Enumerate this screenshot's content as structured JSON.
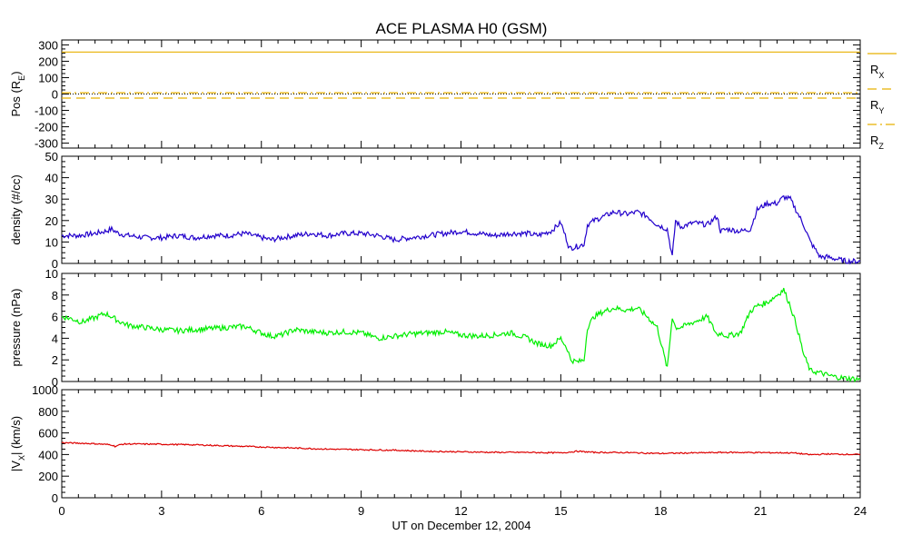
{
  "chart_data": [
    {
      "type": "line",
      "title": "ACE PLASMA H0 (GSM)",
      "ylabel": "Pos (R",
      "ylabel_sub": "E",
      "ylabel_close": ")",
      "ylim": [
        -330,
        330
      ],
      "yticks": [
        -300,
        -200,
        -100,
        0,
        100,
        200,
        300
      ],
      "xlim": [
        0,
        24
      ],
      "series": [
        {
          "name": "R",
          "sub": "X",
          "color": "#e8b000",
          "dash": "solid",
          "x": [
            0,
            24
          ],
          "values": [
            256,
            256
          ]
        },
        {
          "name": "R",
          "sub": "Y",
          "color": "#e8b000",
          "dash": "dash",
          "x": [
            0,
            24
          ],
          "values": [
            -25,
            -25
          ]
        },
        {
          "name": "R",
          "sub": "Z",
          "color": "#e8b000",
          "dash": "dashdot",
          "x": [
            0,
            24
          ],
          "values": [
            8,
            8
          ]
        }
      ],
      "zero_line": true
    },
    {
      "type": "line",
      "ylabel": "density (#/cc)",
      "ylim": [
        0,
        50
      ],
      "yticks": [
        0,
        10,
        20,
        30,
        40,
        50
      ],
      "xlim": [
        0,
        24
      ],
      "series": [
        {
          "color": "#2200cc",
          "x": [
            0,
            0.5,
            1,
            1.3,
            1.5,
            1.7,
            2,
            2.5,
            3,
            3.5,
            4,
            4.5,
            5,
            5.5,
            6,
            6.3,
            6.6,
            7,
            7.5,
            8,
            8.5,
            9,
            9.5,
            10,
            10.5,
            11,
            11.5,
            12,
            12.5,
            13,
            13.5,
            14,
            14.3,
            14.7,
            15,
            15.2,
            15.25,
            15.5,
            15.7,
            15.8,
            16,
            16.3,
            16.6,
            17,
            17.3,
            17.6,
            17.9,
            18.2,
            18.35,
            18.45,
            18.6,
            19,
            19.4,
            19.7,
            19.8,
            20,
            20.4,
            20.7,
            20.9,
            21.2,
            21.5,
            21.7,
            21.9,
            22.1,
            22.3,
            22.5,
            22.8,
            23,
            23.3,
            23.6,
            24
          ],
          "values": [
            13,
            13,
            14,
            15,
            16,
            14,
            13,
            12,
            12,
            13,
            12,
            13,
            13,
            14,
            12,
            11,
            12,
            13,
            14,
            13,
            14,
            14,
            13,
            11,
            12,
            13,
            14,
            15,
            14,
            13,
            14,
            14,
            13,
            15,
            19,
            10,
            7,
            8,
            9,
            18,
            20,
            22,
            24,
            23,
            24,
            22,
            18,
            16,
            3,
            20,
            17,
            19,
            18,
            22,
            15,
            16,
            15,
            16,
            25,
            28,
            28,
            31,
            30,
            24,
            18,
            10,
            3,
            3,
            2,
            1,
            1
          ]
        }
      ]
    },
    {
      "type": "line",
      "ylabel": "pressure (nPa)",
      "ylim": [
        0,
        10
      ],
      "yticks": [
        0,
        2,
        4,
        6,
        8,
        10
      ],
      "xlim": [
        0,
        24
      ],
      "series": [
        {
          "color": "#00ee00",
          "x": [
            0,
            0.3,
            0.6,
            1,
            1.3,
            1.5,
            1.7,
            2,
            2.5,
            3,
            3.5,
            4,
            4.5,
            5,
            5.5,
            6,
            6.3,
            6.6,
            7,
            7.5,
            8,
            8.5,
            9,
            9.5,
            10,
            10.5,
            11,
            11.5,
            12,
            12.5,
            13,
            13.5,
            14,
            14.3,
            14.7,
            15,
            15.2,
            15.3,
            15.5,
            15.7,
            15.8,
            16,
            16.3,
            16.6,
            17,
            17.3,
            17.6,
            17.9,
            18.2,
            18.35,
            18.45,
            18.6,
            19,
            19.4,
            19.7,
            19.8,
            20,
            20.4,
            20.7,
            20.9,
            21.2,
            21.5,
            21.7,
            21.9,
            22.1,
            22.3,
            22.5,
            22.8,
            23,
            23.3,
            23.6,
            24
          ],
          "values": [
            6,
            5.8,
            5.5,
            5.9,
            6.3,
            6,
            5.6,
            5.2,
            5,
            4.8,
            4.7,
            4.8,
            4.9,
            5,
            5.1,
            4.5,
            4.2,
            4.3,
            4.8,
            4.6,
            4.5,
            4.6,
            4.5,
            4,
            4.2,
            4.4,
            4.5,
            4.6,
            4.3,
            4.2,
            4.3,
            4.5,
            4,
            3.5,
            3.3,
            4,
            3,
            2,
            1.8,
            2,
            5,
            6,
            6.5,
            6.8,
            6.6,
            6.8,
            6,
            5,
            1.2,
            6,
            5,
            5,
            5.5,
            6,
            4.3,
            4.5,
            4.2,
            4.5,
            6.5,
            7,
            7.3,
            8,
            8.5,
            7,
            5,
            2.5,
            1,
            0.8,
            0.6,
            0.4,
            0.3,
            0.2
          ]
        }
      ]
    },
    {
      "type": "line",
      "ylabel": "|V",
      "ylabel_sub": "X",
      "ylabel_close": "| (km/s)",
      "ylim": [
        0,
        1000
      ],
      "yticks": [
        0,
        200,
        400,
        600,
        800,
        1000
      ],
      "xlim": [
        0,
        24
      ],
      "xlabel": "UT on December 12, 2004",
      "xticks": [
        0,
        3,
        6,
        9,
        12,
        15,
        18,
        21,
        24
      ],
      "series": [
        {
          "color": "#dd0000",
          "x": [
            0,
            0.5,
            1,
            1.5,
            1.6,
            1.8,
            2,
            3,
            4,
            5,
            6,
            7,
            8,
            9,
            10,
            11,
            12,
            13,
            14,
            15,
            15.5,
            16,
            17,
            18,
            19,
            20,
            21,
            22,
            22.5,
            23,
            24
          ],
          "values": [
            510,
            505,
            500,
            490,
            475,
            495,
            498,
            495,
            490,
            480,
            470,
            460,
            450,
            445,
            440,
            430,
            425,
            420,
            420,
            415,
            430,
            420,
            418,
            410,
            415,
            420,
            418,
            415,
            398,
            405,
            400
          ]
        }
      ]
    }
  ]
}
